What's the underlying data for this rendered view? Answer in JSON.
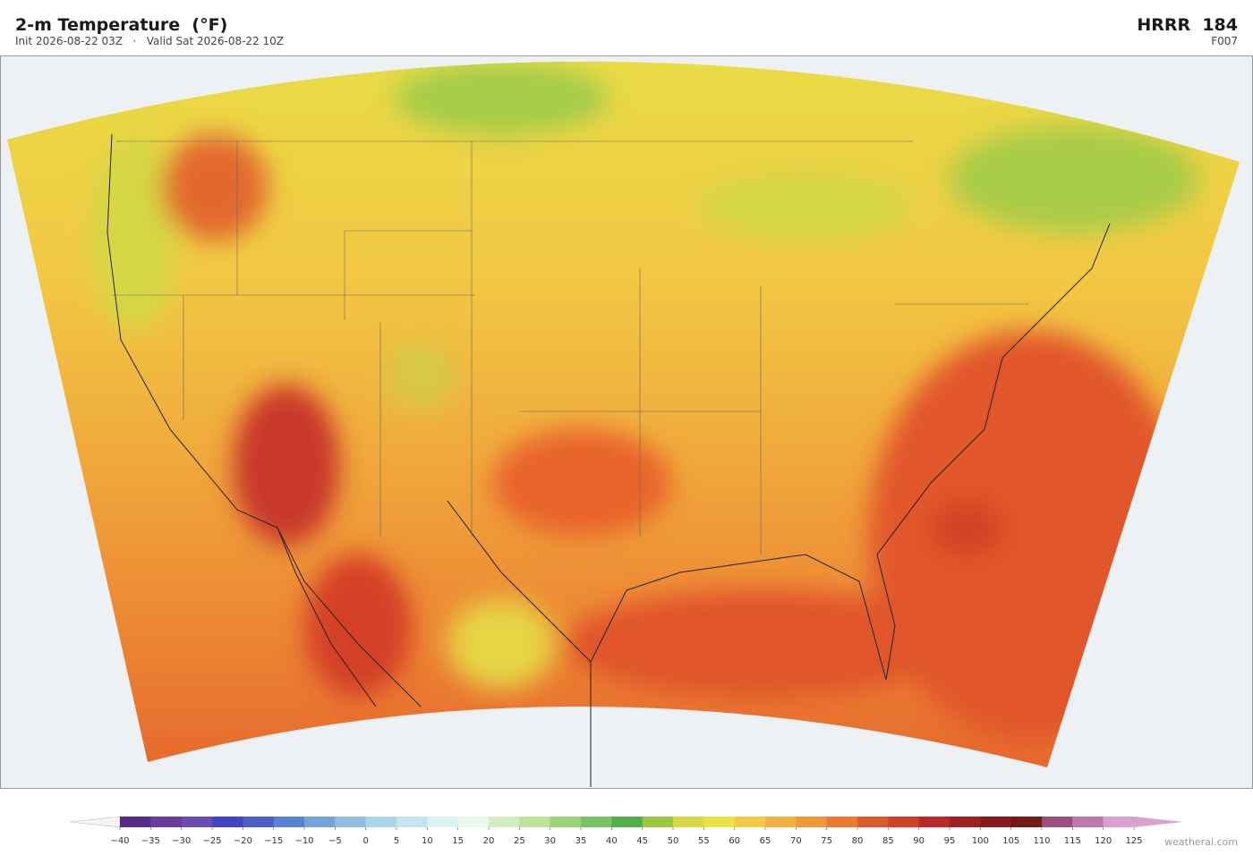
{
  "header": {
    "title": "2-m Temperature  (°F)",
    "subtitle": "Init 2026-08-22 03Z   ·   Valid Sat 2026-08-22 10Z",
    "model": "HRRR  184",
    "forecast_hour": "F007"
  },
  "colorbar": {
    "ticks": [
      {
        "value": -40,
        "label": "−40"
      },
      {
        "value": -35,
        "label": "−35"
      },
      {
        "value": -30,
        "label": "−30"
      },
      {
        "value": -25,
        "label": "−25"
      },
      {
        "value": -20,
        "label": "−20"
      },
      {
        "value": -15,
        "label": "−15"
      },
      {
        "value": -10,
        "label": "−10"
      },
      {
        "value": -5,
        "label": "−5"
      },
      0,
      5,
      10,
      15,
      20,
      25,
      30,
      35,
      40,
      45,
      50,
      55,
      60,
      65,
      70,
      75,
      80,
      85,
      90,
      95,
      100,
      105,
      110,
      115,
      120,
      125
    ],
    "colors": [
      "#572a8a",
      "#6a3a9c",
      "#6b4cb2",
      "#4444c2",
      "#4a60c8",
      "#5a82d2",
      "#76a2da",
      "#92bee2",
      "#aad6ea",
      "#c2e6f0",
      "#daf2f4",
      "#eaf8ea",
      "#d4eec0",
      "#bde39a",
      "#9ad478",
      "#78c464",
      "#4fb048",
      "#9cc840",
      "#d2d942",
      "#ede244",
      "#f4ca42",
      "#f1b13f",
      "#f09737",
      "#ec7a31",
      "#e0592a",
      "#d04228",
      "#b92a27",
      "#9d2121",
      "#891a1a",
      "#751818",
      "#9d4d7a",
      "#bc79a9",
      "#d9a1cd"
    ],
    "under_color": "#f4f4f4",
    "over_color": "#d9a1cd"
  },
  "watermark": "weatherai.com"
}
